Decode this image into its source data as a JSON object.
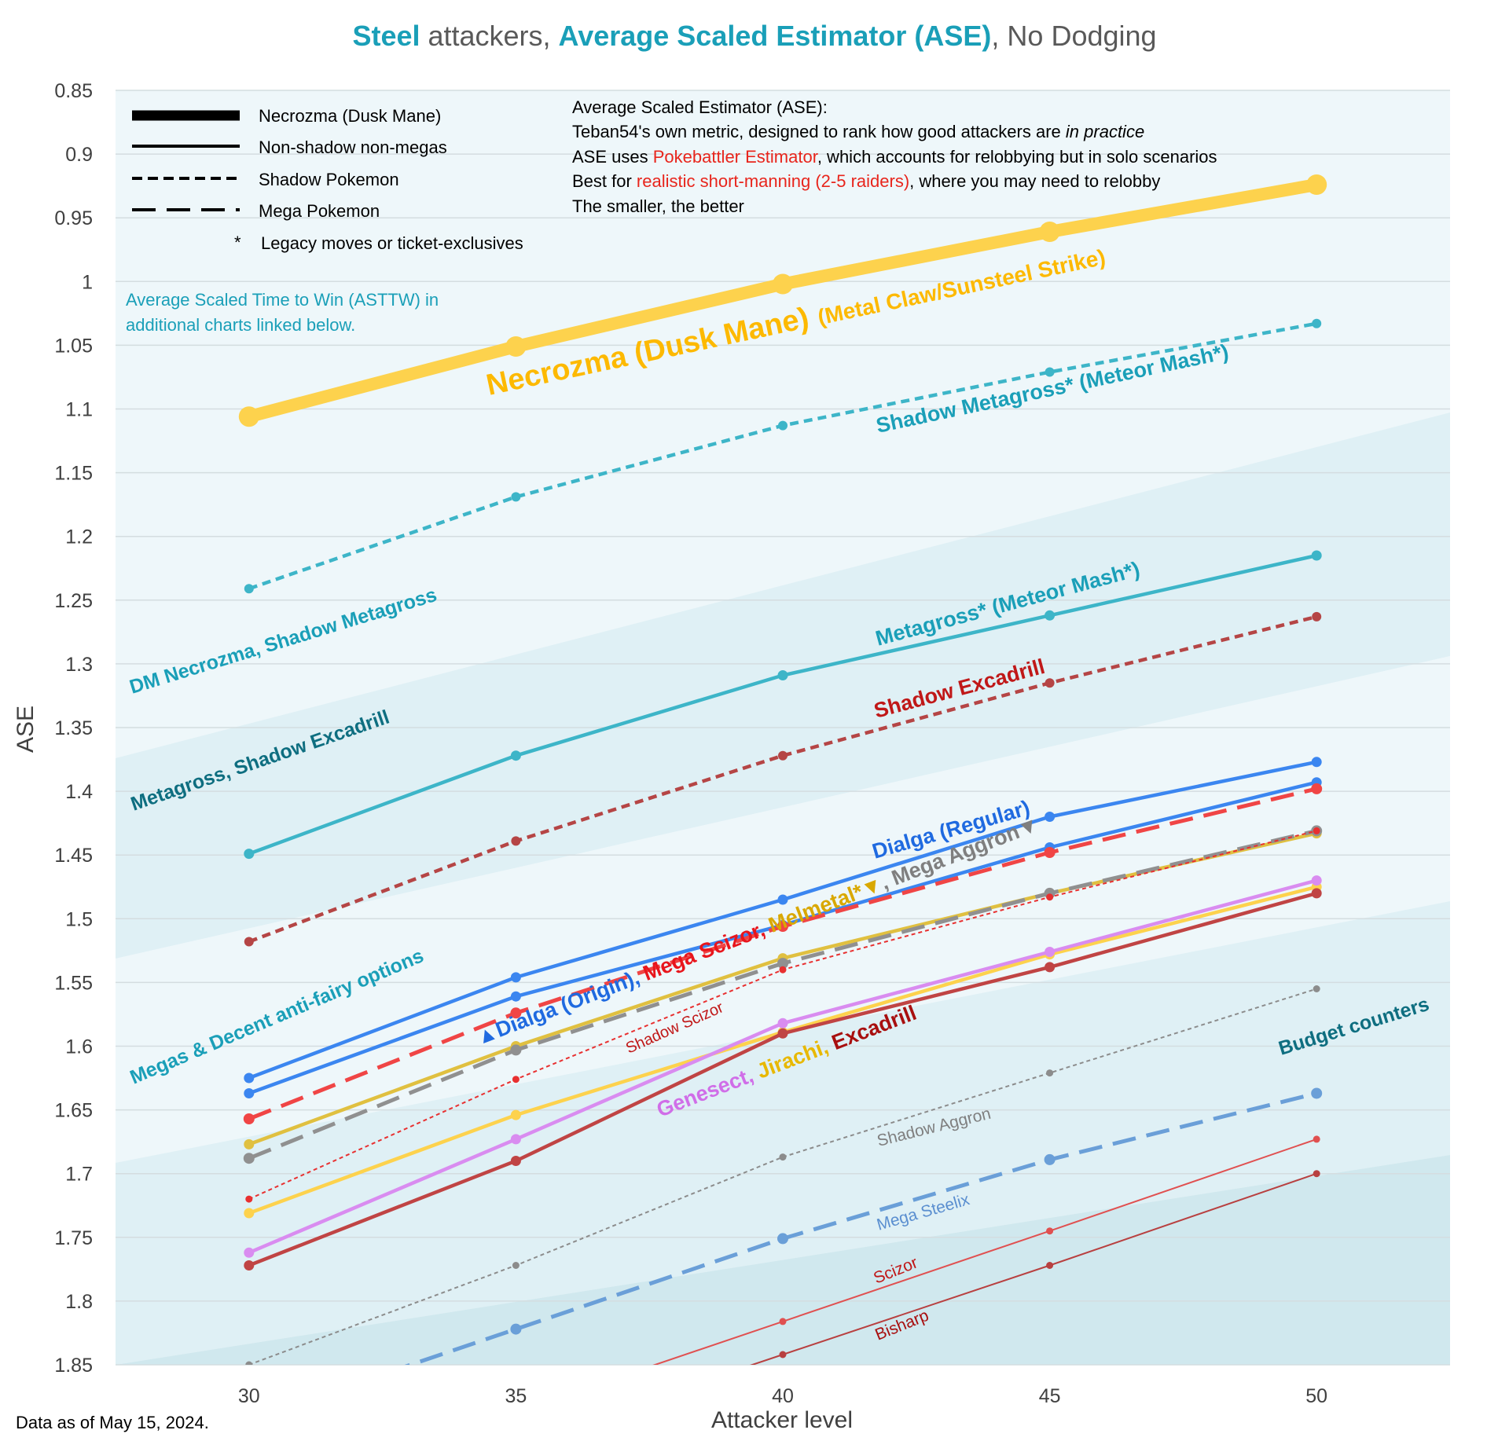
{
  "title": {
    "part1": "Steel",
    "part2": " attackers, ",
    "part3": "Average Scaled Estimator (ASE)",
    "part4": ", No Dodging"
  },
  "footer": "Data as of May 15, 2024.",
  "legend": [
    {
      "label": "Necrozma (Dusk Mane)",
      "style": "thick"
    },
    {
      "label": "Non-shadow non-megas",
      "style": "solid"
    },
    {
      "label": "Shadow Pokemon",
      "style": "dashed"
    },
    {
      "label": "Mega Pokemon",
      "style": "longdash"
    },
    {
      "label": "Legacy moves or ticket-exclusives",
      "style": "star",
      "symbol": "*"
    }
  ],
  "info": {
    "line1": "Average Scaled Estimator (ASE):",
    "line2_a": "Teban54's own metric, designed to rank how good attackers are ",
    "line2_b": "in practice",
    "line3_a": "ASE uses ",
    "line3_b": "Pokebattler Estimator",
    "line3_c": ", which accounts for relobbying but in solo scenarios",
    "line4_a": "Best for ",
    "line4_b": "realistic short-manning (2-5 raiders)",
    "line4_c": ", where you may need to relobby",
    "line5": "The smaller, the better"
  },
  "note": {
    "line1": "Average Scaled Time to Win (ASTTW) in",
    "line2": "additional charts linked below."
  },
  "tier_labels": [
    {
      "text": "DM Necrozma, Shadow Metagross",
      "color": "#1a9fb8"
    },
    {
      "text": "Metagross, Shadow Excadrill",
      "color": "#0e6e80"
    },
    {
      "text": "Megas & Decent anti-fairy options",
      "color": "#1a9fb8"
    },
    {
      "text": "Budget counters",
      "color": "#0e6e80"
    }
  ],
  "series_labels": {
    "necrozma_main": "Necrozma (Dusk Mane)",
    "necrozma_moves": "(Metal Claw/Sunsteel Strike)",
    "shadow_metagross": "Shadow Metagross* (Meteor Mash*)",
    "metagross": "Metagross* (Meteor Mash*)",
    "shadow_excadrill": "Shadow Excadrill",
    "dialga_regular": "Dialga (Regular)",
    "dialga_origin": "▲Dialga (Origin), ",
    "mega_scizor": "Mega Scizor, ",
    "melmetal": "Melmetal*▼",
    "mega_aggron": ", Mega Aggron▼",
    "shadow_scizor": "Shadow Scizor",
    "genesect": "Genesect, ",
    "jirachi": "Jirachi, ",
    "excadrill": "Excadrill",
    "shadow_aggron": "Shadow Aggron",
    "mega_steelix": "Mega Steelix",
    "scizor": "Scizor",
    "bisharp": "Bisharp"
  },
  "chart_data": {
    "type": "line",
    "title": "Steel attackers, Average Scaled Estimator (ASE), No Dodging",
    "xlabel": "Attacker level",
    "ylabel": "ASE",
    "x": [
      30,
      35,
      40,
      45,
      50
    ],
    "xlim": [
      27.5,
      52.5
    ],
    "ylim": [
      0.85,
      1.85
    ],
    "y_inverted": true,
    "y_ticks": [
      "0.85",
      "0.9",
      "0.95",
      "1",
      "1.05",
      "1.1",
      "1.15",
      "1.2",
      "1.25",
      "1.3",
      "1.35",
      "1.4",
      "1.45",
      "1.5",
      "1.55",
      "1.6",
      "1.65",
      "1.7",
      "1.75",
      "1.8",
      "1.85"
    ],
    "x_ticks": [
      "30",
      "35",
      "40",
      "45",
      "50"
    ],
    "grid": true,
    "series": [
      {
        "name": "Necrozma (Dusk Mane)",
        "values": [
          1.106,
          1.051,
          1.002,
          0.961,
          0.924
        ],
        "color": "#fdd24d",
        "style": "thick"
      },
      {
        "name": "Shadow Metagross",
        "values": [
          1.241,
          1.169,
          1.113,
          1.071,
          1.033
        ],
        "color": "#3db5c8",
        "style": "dashed"
      },
      {
        "name": "Metagross",
        "values": [
          1.449,
          1.372,
          1.309,
          1.262,
          1.215
        ],
        "color": "#3db5c8",
        "style": "solid"
      },
      {
        "name": "Shadow Excadrill",
        "values": [
          1.518,
          1.439,
          1.372,
          1.315,
          1.263
        ],
        "color": "#b54545",
        "style": "dashed"
      },
      {
        "name": "Dialga (Regular)",
        "values": [
          1.625,
          1.546,
          1.485,
          1.42,
          1.377
        ],
        "color": "#3b86f0",
        "style": "solid"
      },
      {
        "name": "Dialga (Origin)",
        "values": [
          1.637,
          1.561,
          1.505,
          1.444,
          1.393
        ],
        "color": "#3b86f0",
        "style": "solid"
      },
      {
        "name": "Mega Scizor",
        "values": [
          1.657,
          1.574,
          1.506,
          1.448,
          1.398
        ],
        "color": "#f04545",
        "style": "longdash"
      },
      {
        "name": "Melmetal",
        "values": [
          1.677,
          1.6,
          1.531,
          1.48,
          1.433
        ],
        "color": "#e0c040",
        "style": "solid"
      },
      {
        "name": "Mega Aggron",
        "values": [
          1.688,
          1.603,
          1.535,
          1.48,
          1.431
        ],
        "color": "#909090",
        "style": "longdash"
      },
      {
        "name": "Shadow Scizor",
        "values": [
          1.72,
          1.626,
          1.54,
          1.483,
          1.431
        ],
        "color": "#e83030",
        "style": "dotted"
      },
      {
        "name": "Jirachi",
        "values": [
          1.731,
          1.654,
          1.589,
          1.528,
          1.475
        ],
        "color": "#fdd24d",
        "style": "solid"
      },
      {
        "name": "Genesect",
        "values": [
          1.762,
          1.673,
          1.582,
          1.526,
          1.47
        ],
        "color": "#d98cf0",
        "style": "solid"
      },
      {
        "name": "Excadrill",
        "values": [
          1.772,
          1.69,
          1.59,
          1.538,
          1.48
        ],
        "color": "#c04444",
        "style": "solid"
      },
      {
        "name": "Shadow Aggron",
        "values": [
          1.85,
          1.772,
          1.687,
          1.621,
          1.555
        ],
        "color": "#8c8c8c",
        "style": "dotted"
      },
      {
        "name": "Mega Steelix",
        "values": [
          null,
          1.822,
          1.751,
          1.689,
          1.637
        ],
        "color": "#6a9fd8",
        "style": "longdash"
      },
      {
        "name": "Scizor",
        "values": [
          null,
          null,
          1.816,
          1.745,
          1.673
        ],
        "color": "#e05050",
        "style": "thin"
      },
      {
        "name": "Bisharp",
        "values": [
          null,
          null,
          1.842,
          1.772,
          1.7
        ],
        "color": "#b84040",
        "style": "thin"
      }
    ]
  }
}
